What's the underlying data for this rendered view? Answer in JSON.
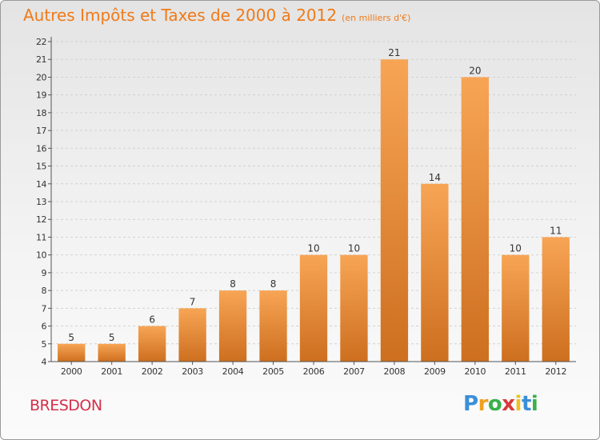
{
  "commune": "BRESDON",
  "logo": {
    "text": "Proxiti",
    "letters": [
      "P",
      "r",
      "o",
      "x",
      "i",
      "t",
      "i"
    ],
    "colors": [
      "#3a8fd9",
      "#f0a020",
      "#3ab04a",
      "#d93a3a",
      "#f0c020",
      "#3a8fd9",
      "#3ab04a"
    ]
  },
  "chart_data": {
    "type": "bar",
    "title": "Autres Impôts et Taxes de 2000 à 2012",
    "unit_label": "(en milliers d'€)",
    "categories": [
      "2000",
      "2001",
      "2002",
      "2003",
      "2004",
      "2005",
      "2006",
      "2007",
      "2008",
      "2009",
      "2010",
      "2011",
      "2012"
    ],
    "values": [
      5,
      5,
      6,
      7,
      8,
      8,
      10,
      10,
      21,
      14,
      20,
      10,
      11
    ],
    "ylim": [
      4,
      22
    ],
    "yticks": [
      4,
      5,
      6,
      7,
      8,
      9,
      10,
      11,
      12,
      13,
      14,
      15,
      16,
      17,
      18,
      19,
      20,
      21,
      22
    ],
    "grid": true,
    "bar_color": "#f0a050",
    "bar_color_dark": "#c86a1e"
  }
}
